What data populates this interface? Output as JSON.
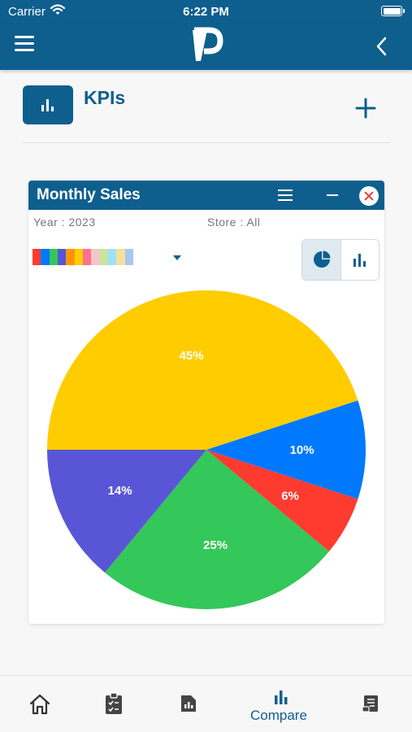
{
  "status_bar": {
    "carrier": "Carrier",
    "time": "6:22 PM"
  },
  "nav": {
    "logo_letter": "P"
  },
  "kpi": {
    "title": "KPIs"
  },
  "card": {
    "title": "Monthly Sales",
    "year_filter": "Year : 2023",
    "store_filter": "Store : All",
    "legend_colors": [
      "#ff3b30",
      "#0079ff",
      "#34c759",
      "#5856d6",
      "#ff9500",
      "#ffcc00",
      "#ff6f91",
      "#f0c8c8",
      "#c8e69b",
      "#9de0ff",
      "#f5e19a",
      "#a7c7f2"
    ],
    "view_modes": [
      "pie",
      "bar"
    ],
    "active_view": "pie"
  },
  "chart_data": {
    "type": "pie",
    "values": [
      45,
      10,
      6,
      25,
      14
    ],
    "labels": [
      "45%",
      "10%",
      "6%",
      "25%",
      "14%"
    ],
    "colors": [
      "#ffcc00",
      "#0079ff",
      "#ff3b30",
      "#34c759",
      "#5856d6"
    ]
  },
  "tabbar": {
    "items": [
      {
        "icon": "home-icon",
        "label": ""
      },
      {
        "icon": "clipboard-checklist-icon",
        "label": ""
      },
      {
        "icon": "report-icon",
        "label": ""
      },
      {
        "icon": "bar-chart-icon",
        "label": "Compare"
      },
      {
        "icon": "receipt-icon",
        "label": ""
      }
    ],
    "active": 3
  }
}
